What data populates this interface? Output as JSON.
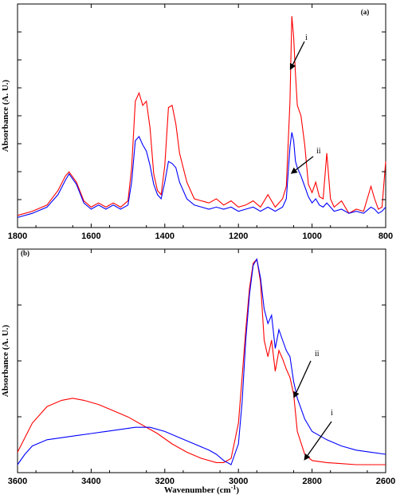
{
  "chart_data": [
    {
      "type": "line",
      "panel_label": "(a)",
      "xlabel": "",
      "ylabel": "Absorbance (A. U.)",
      "xlim": [
        1800,
        800
      ],
      "ylim": [
        0,
        1
      ],
      "x_ticks": [
        1800,
        1600,
        1400,
        1200,
        1000,
        800
      ],
      "y_tick_labels_shown": false,
      "grid": false,
      "series": [
        {
          "color": "#ff0000",
          "x": [
            1800,
            1760,
            1720,
            1690,
            1670,
            1660,
            1640,
            1620,
            1600,
            1580,
            1560,
            1540,
            1520,
            1500,
            1490,
            1480,
            1470,
            1460,
            1450,
            1440,
            1430,
            1420,
            1410,
            1400,
            1390,
            1380,
            1370,
            1360,
            1340,
            1320,
            1300,
            1280,
            1260,
            1240,
            1220,
            1200,
            1180,
            1160,
            1140,
            1120,
            1100,
            1080,
            1070,
            1060,
            1055,
            1050,
            1045,
            1040,
            1030,
            1020,
            1010,
            1000,
            990,
            980,
            970,
            960,
            950,
            940,
            920,
            900,
            880,
            860,
            840,
            830,
            820,
            810,
            800
          ],
          "y": [
            0.02,
            0.04,
            0.07,
            0.14,
            0.21,
            0.23,
            0.18,
            0.09,
            0.06,
            0.08,
            0.06,
            0.08,
            0.06,
            0.09,
            0.25,
            0.57,
            0.61,
            0.55,
            0.57,
            0.44,
            0.22,
            0.14,
            0.12,
            0.26,
            0.54,
            0.55,
            0.46,
            0.32,
            0.18,
            0.1,
            0.09,
            0.08,
            0.1,
            0.07,
            0.09,
            0.06,
            0.07,
            0.09,
            0.06,
            0.12,
            0.06,
            0.1,
            0.16,
            0.57,
            0.98,
            0.88,
            0.7,
            0.55,
            0.5,
            0.36,
            0.17,
            0.13,
            0.18,
            0.11,
            0.1,
            0.32,
            0.1,
            0.06,
            0.09,
            0.03,
            0.05,
            0.04,
            0.16,
            0.1,
            0.05,
            0.06,
            0.28
          ]
        },
        {
          "color": "#0000ff",
          "x": [
            1800,
            1760,
            1720,
            1690,
            1670,
            1660,
            1640,
            1620,
            1600,
            1580,
            1560,
            1540,
            1520,
            1500,
            1490,
            1480,
            1470,
            1460,
            1450,
            1440,
            1430,
            1420,
            1410,
            1400,
            1390,
            1380,
            1370,
            1360,
            1340,
            1320,
            1300,
            1280,
            1260,
            1240,
            1220,
            1200,
            1180,
            1160,
            1140,
            1120,
            1100,
            1080,
            1070,
            1060,
            1055,
            1050,
            1045,
            1040,
            1030,
            1020,
            1010,
            1000,
            990,
            980,
            970,
            960,
            950,
            940,
            920,
            900,
            880,
            860,
            840,
            830,
            820,
            810,
            800
          ],
          "y": [
            0.01,
            0.03,
            0.06,
            0.12,
            0.19,
            0.22,
            0.17,
            0.08,
            0.05,
            0.07,
            0.05,
            0.07,
            0.05,
            0.07,
            0.18,
            0.38,
            0.4,
            0.36,
            0.33,
            0.26,
            0.17,
            0.12,
            0.1,
            0.18,
            0.28,
            0.27,
            0.25,
            0.18,
            0.1,
            0.07,
            0.06,
            0.05,
            0.06,
            0.05,
            0.06,
            0.04,
            0.05,
            0.06,
            0.04,
            0.06,
            0.04,
            0.06,
            0.1,
            0.35,
            0.42,
            0.38,
            0.28,
            0.25,
            0.21,
            0.16,
            0.11,
            0.08,
            0.1,
            0.07,
            0.06,
            0.08,
            0.06,
            0.04,
            0.05,
            0.03,
            0.04,
            0.03,
            0.06,
            0.05,
            0.03,
            0.04,
            0.06
          ]
        }
      ],
      "annotations": [
        {
          "text": "i",
          "arrow_to": [
            1060,
            0.72
          ]
        },
        {
          "text": "ii",
          "arrow_to": [
            1058,
            0.22
          ]
        }
      ]
    },
    {
      "type": "line",
      "panel_label": "(b)",
      "xlabel": "Wavenumber (cm-1)",
      "xlabel_main": "Wavenumber (cm",
      "xlabel_sup": "-1",
      "xlabel_end": ")",
      "ylabel": "Absorbance (A. U.)",
      "xlim": [
        3600,
        2600
      ],
      "ylim": [
        0,
        1
      ],
      "x_ticks": [
        3600,
        3400,
        3200,
        3000,
        2800,
        2600
      ],
      "y_tick_labels_shown": false,
      "grid": false,
      "series": [
        {
          "color": "#ff0000",
          "x": [
            3600,
            3560,
            3520,
            3480,
            3450,
            3420,
            3380,
            3340,
            3300,
            3260,
            3220,
            3180,
            3140,
            3100,
            3060,
            3040,
            3020,
            3000,
            2990,
            2980,
            2970,
            2960,
            2950,
            2940,
            2930,
            2920,
            2910,
            2900,
            2890,
            2880,
            2870,
            2860,
            2850,
            2840,
            2820,
            2800,
            2760,
            2720,
            2680,
            2640,
            2600
          ],
          "y": [
            0.06,
            0.2,
            0.28,
            0.31,
            0.32,
            0.31,
            0.29,
            0.26,
            0.23,
            0.19,
            0.15,
            0.1,
            0.06,
            0.03,
            0.01,
            0.01,
            0.03,
            0.2,
            0.42,
            0.65,
            0.85,
            0.97,
            0.99,
            0.88,
            0.6,
            0.52,
            0.6,
            0.45,
            0.55,
            0.51,
            0.46,
            0.42,
            0.34,
            0.16,
            0.05,
            0.02,
            0.01,
            0.005,
            0.0,
            0.0,
            0.0
          ]
        },
        {
          "color": "#0000ff",
          "x": [
            3600,
            3580,
            3560,
            3520,
            3480,
            3440,
            3400,
            3360,
            3320,
            3280,
            3260,
            3240,
            3200,
            3160,
            3120,
            3080,
            3060,
            3040,
            3020,
            3000,
            2990,
            2980,
            2970,
            2960,
            2950,
            2940,
            2930,
            2920,
            2910,
            2900,
            2890,
            2880,
            2870,
            2860,
            2850,
            2840,
            2820,
            2800,
            2760,
            2720,
            2680,
            2640,
            2600
          ],
          "y": [
            0.0,
            0.05,
            0.09,
            0.12,
            0.13,
            0.14,
            0.15,
            0.16,
            0.17,
            0.18,
            0.18,
            0.18,
            0.16,
            0.13,
            0.1,
            0.07,
            0.05,
            0.02,
            0.0,
            0.1,
            0.3,
            0.6,
            0.82,
            0.96,
            0.99,
            0.9,
            0.75,
            0.68,
            0.72,
            0.56,
            0.65,
            0.6,
            0.55,
            0.52,
            0.4,
            0.32,
            0.22,
            0.16,
            0.12,
            0.09,
            0.07,
            0.06,
            0.05
          ]
        }
      ],
      "annotations": [
        {
          "text": "ii",
          "arrow_to": [
            2850,
            0.32
          ]
        },
        {
          "text": "i",
          "arrow_to": [
            2822,
            0.02
          ]
        }
      ]
    }
  ]
}
